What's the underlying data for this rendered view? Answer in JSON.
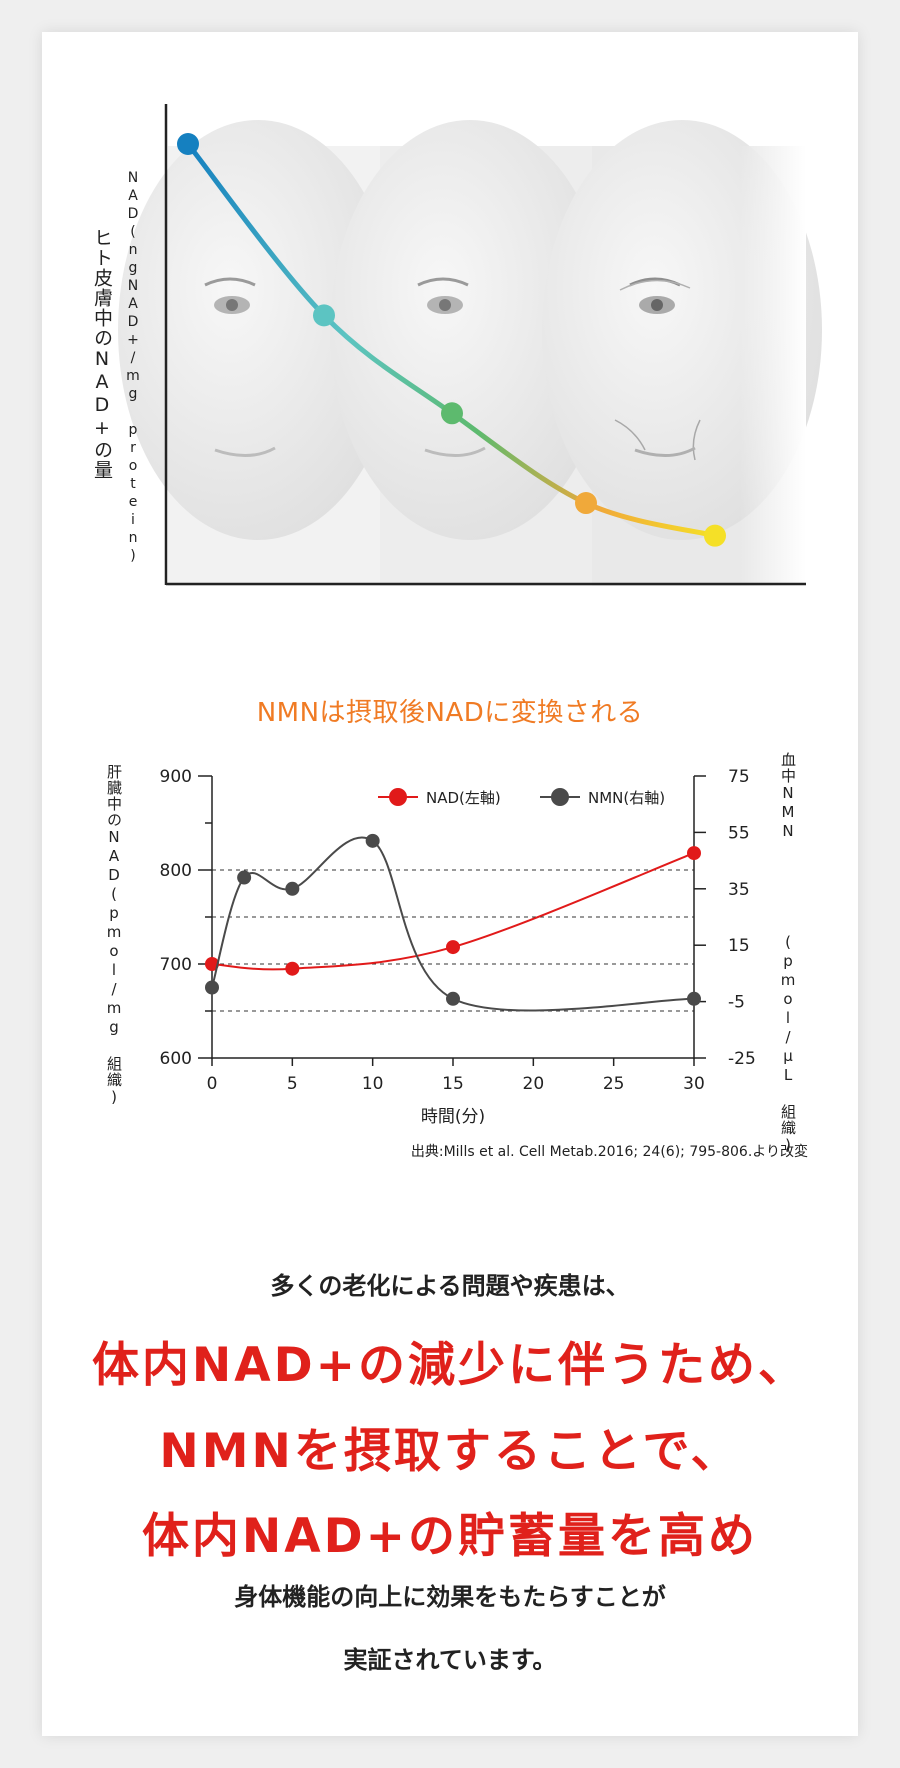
{
  "chart_data": [
    {
      "type": "line",
      "ylabel": "ヒト皮膚中のNAD+の量",
      "ylabel_unit": "NAD(ngNAD+/mg protein)",
      "series": [
        {
          "values": [
            1.0,
            0.58,
            0.34,
            0.12,
            0.04
          ]
        }
      ],
      "point_colors": [
        "#1580c0",
        "#5cc4c2",
        "#5dba6e",
        "#f0a93a",
        "#f5e027"
      ],
      "grid": false
    },
    {
      "type": "line",
      "title": "NMNは摂取後NADに変換される",
      "xlabel": "時間(分)",
      "ylabel": "肝臓中のNAD(pmol/mg 組織)",
      "y2label_top": "血中NMN",
      "y2label_unit": "(pmol/μL 組織)",
      "x_ticks": [
        "0",
        "5",
        "10",
        "15",
        "20",
        "25",
        "30"
      ],
      "y_ticks": [
        "600",
        "700",
        "800",
        "900"
      ],
      "y2_ticks": [
        "75",
        "55",
        "35",
        "15",
        "-5",
        "-25"
      ],
      "xlim": [
        0,
        30
      ],
      "ylim": [
        600,
        900
      ],
      "y2lim": [
        -25,
        75
      ],
      "series": [
        {
          "name": "NAD(左軸)",
          "axis": "left",
          "color": "#e11a1a",
          "x": [
            0,
            5,
            15,
            30
          ],
          "y": [
            700,
            695,
            718,
            818
          ]
        },
        {
          "name": "NMN(右軸)",
          "axis": "right",
          "color": "#4a4a4a",
          "x": [
            0,
            2,
            5,
            10,
            15,
            30
          ],
          "y": [
            0,
            39,
            35,
            52,
            -4,
            -4
          ]
        }
      ],
      "dashed_lines_left": [
        800,
        750,
        700,
        650
      ],
      "legend": "top-right"
    }
  ],
  "source": "出典:Mills et al. Cell Metab.2016; 24(6); 795-806.より改変",
  "text": {
    "intro": "多くの老化による問題や疾患は、",
    "headline1": "体内NAD+の減少に伴うため、",
    "headline2": "NMNを摂取することで、",
    "headline3": "体内NAD+の貯蓄量を高め",
    "body1": "身体機能の向上に効果をもたらすことが",
    "body2": "実証されています。"
  },
  "colors": {
    "accent_red": "#e0211b",
    "accent_orange": "#f07b24"
  }
}
